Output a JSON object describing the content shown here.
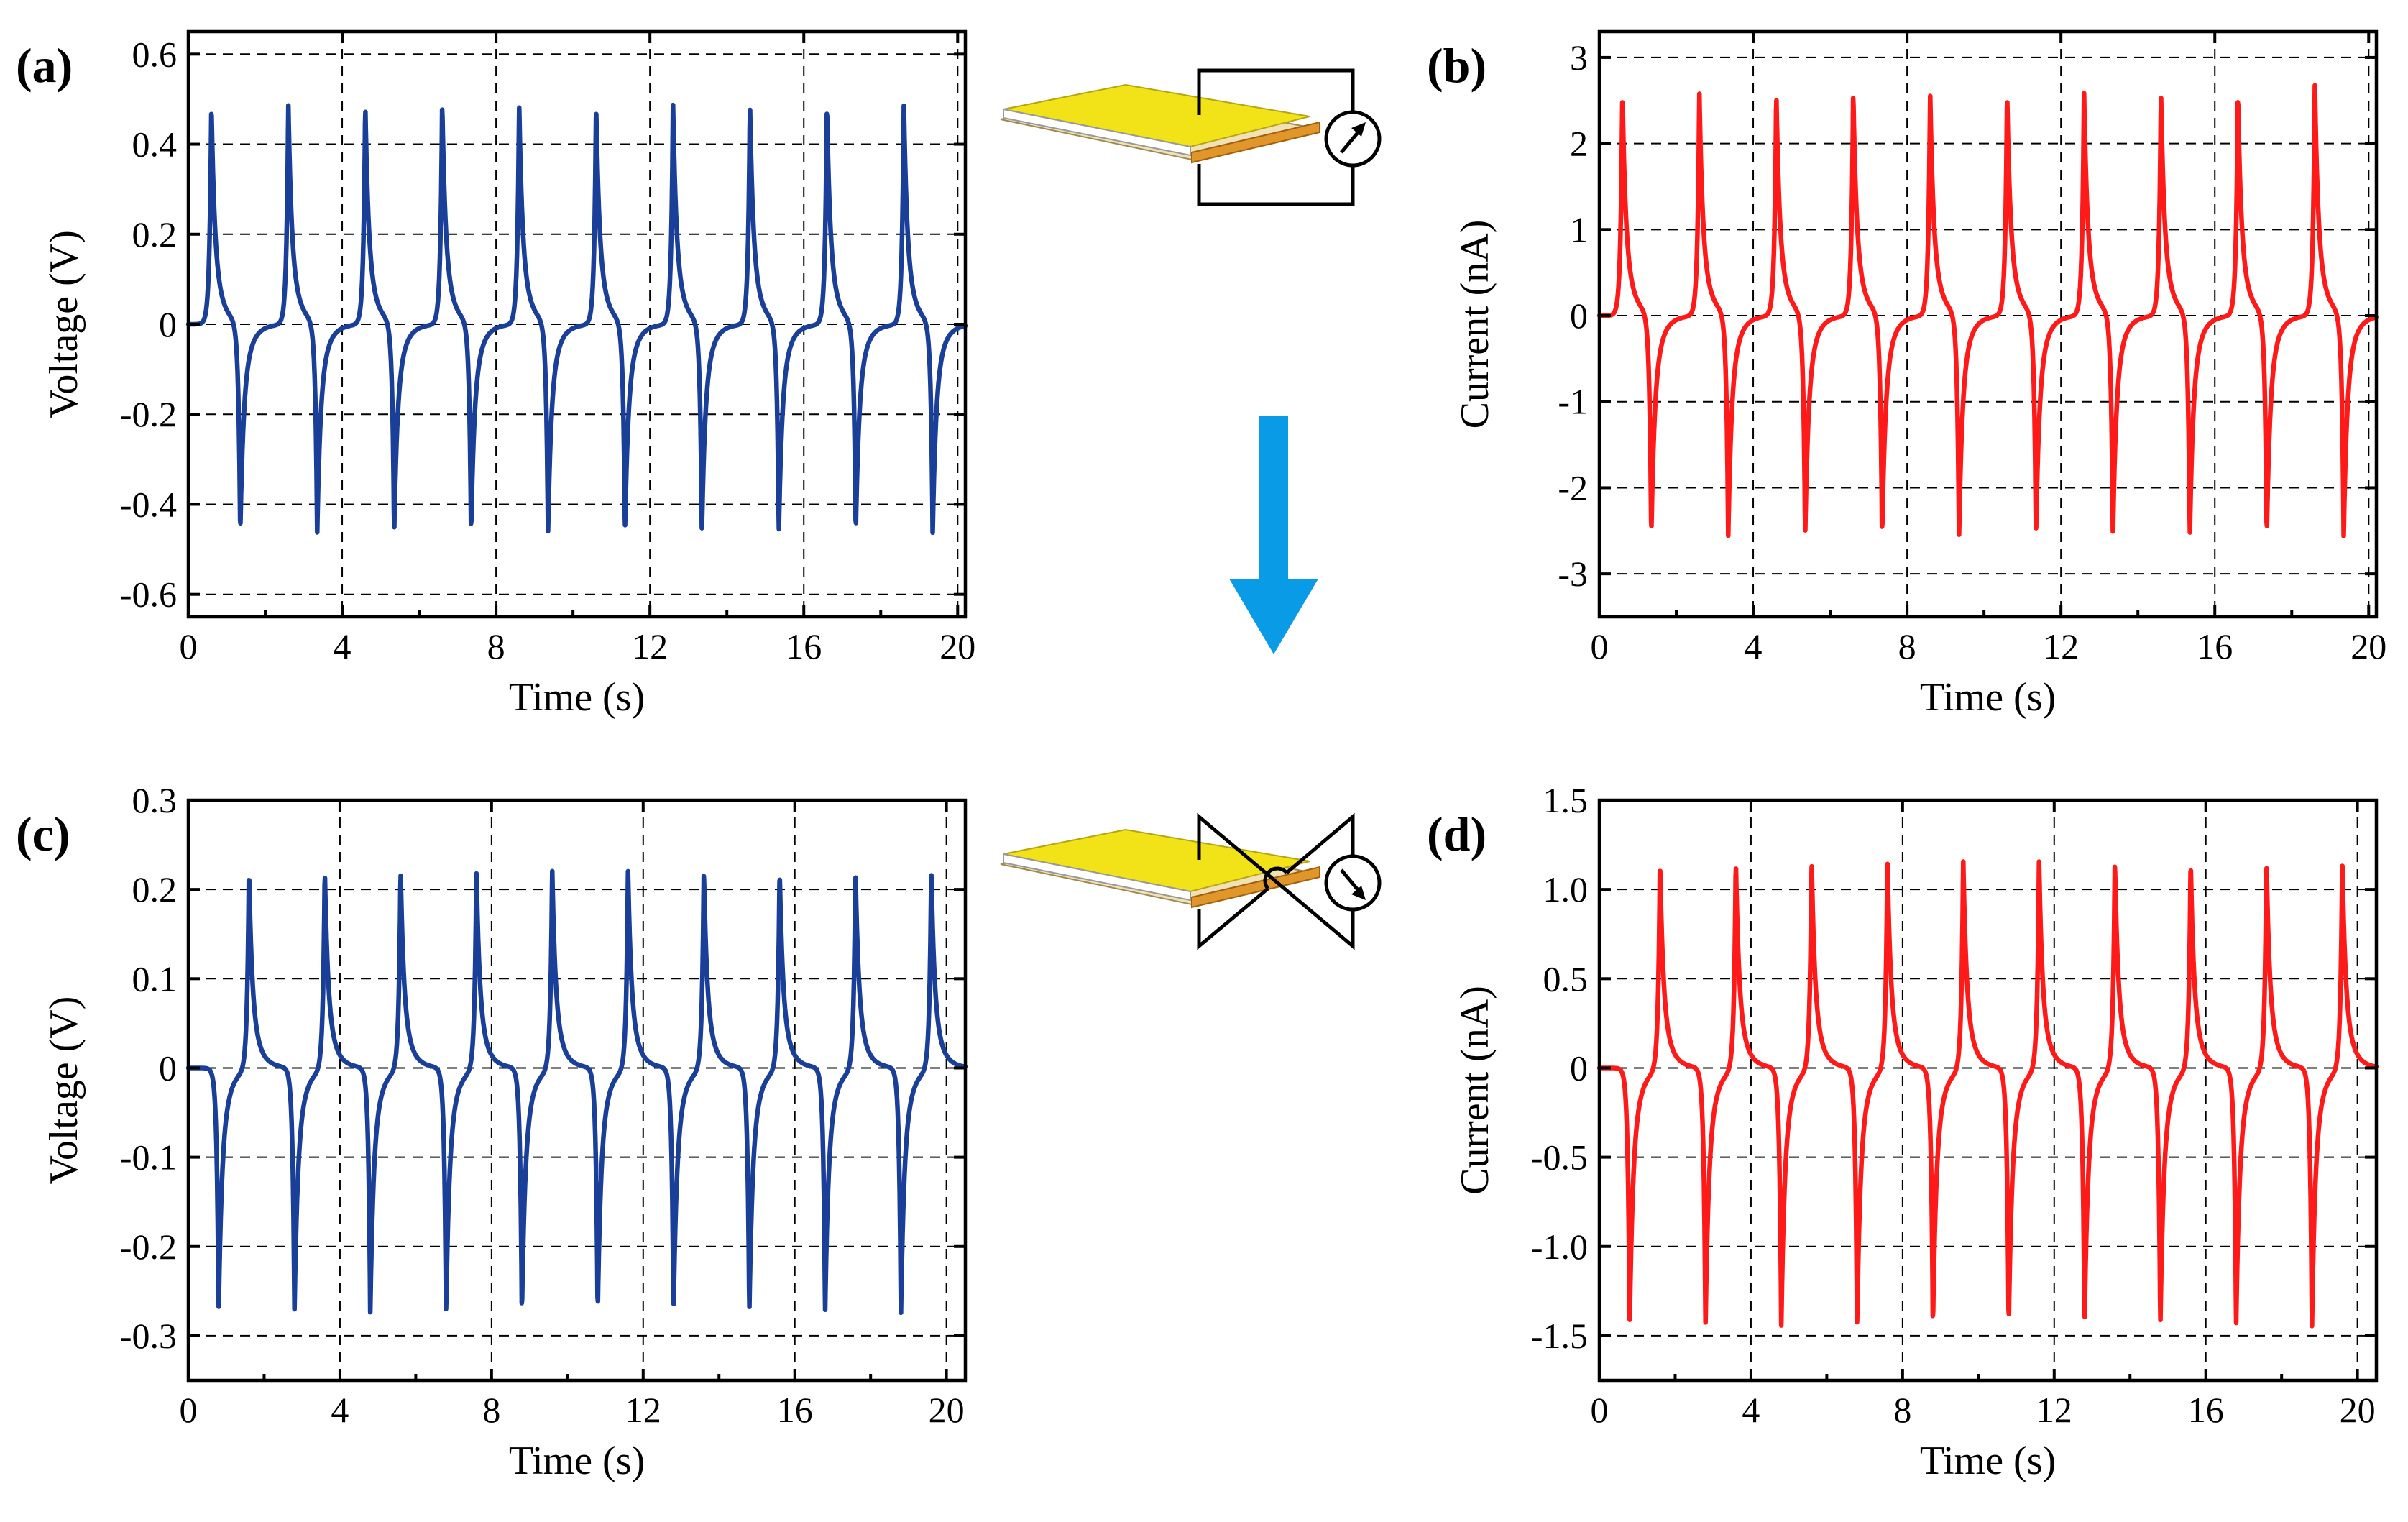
{
  "colors": {
    "voltage_trace": "#1a3f99",
    "current_trace": "#ff1a1a",
    "arrow": "#0a9be6",
    "device_top": "#f2e318",
    "device_side": "#e1962a",
    "device_base": "#f1e2b6",
    "circuit_line": "#000000"
  },
  "diagrams": {
    "top": {
      "name": "device-with-closed-circuit",
      "icons": [
        "layered-device-icon",
        "ammeter-icon",
        "circuit-loop-icon"
      ]
    },
    "bottom": {
      "name": "device-with-reversed-circuit",
      "icons": [
        "layered-device-icon",
        "ammeter-icon",
        "crossed-circuit-icon"
      ]
    },
    "arrow_icon": "down-arrow-icon"
  },
  "chart_data": [
    {
      "id": "a",
      "panel_label": "(a)",
      "type": "line",
      "title": "",
      "xlabel": "Time (s)",
      "ylabel": "Voltage (V)",
      "xlim": [
        0,
        20.2
      ],
      "ylim": [
        -0.65,
        0.65
      ],
      "xticks": [
        0,
        4,
        8,
        12,
        16,
        20
      ],
      "yticks": [
        -0.6,
        -0.4,
        -0.2,
        0,
        0.2,
        0.4,
        0.6
      ],
      "ytick_labels": [
        "-0.6",
        "-0.4",
        "-0.2",
        "0",
        "0.2",
        "0.4",
        "0.6"
      ],
      "grid": true,
      "color": "voltage_trace",
      "series": [
        {
          "positive_peak_times": [
            0.6,
            2.6,
            4.6,
            6.6,
            8.6,
            10.6,
            12.6,
            14.6,
            16.6,
            18.6
          ],
          "positive_peak_values": [
            0.49,
            0.49,
            0.49,
            0.49,
            0.49,
            0.49,
            0.49,
            0.49,
            0.49,
            0.49
          ],
          "negative_peak_times": [
            1.35,
            3.35,
            5.35,
            7.35,
            9.35,
            11.35,
            13.35,
            15.35,
            17.35,
            19.35
          ],
          "negative_peak_values": [
            -0.47,
            -0.47,
            -0.47,
            -0.47,
            -0.47,
            -0.47,
            -0.47,
            -0.47,
            -0.47,
            -0.47
          ],
          "baseline": 0
        }
      ]
    },
    {
      "id": "b",
      "panel_label": "(b)",
      "type": "line",
      "title": "",
      "xlabel": "Time (s)",
      "ylabel": "Current (nA)",
      "xlim": [
        0,
        20.2
      ],
      "ylim": [
        -3.5,
        3.3
      ],
      "xticks": [
        0,
        4,
        8,
        12,
        16,
        20
      ],
      "yticks": [
        -3,
        -2,
        -1,
        0,
        1,
        2,
        3
      ],
      "ytick_labels": [
        "-3",
        "-2",
        "-1",
        "0",
        "1",
        "2",
        "3"
      ],
      "grid": true,
      "color": "current_trace",
      "series": [
        {
          "positive_peak_times": [
            0.6,
            2.6,
            4.6,
            6.6,
            8.6,
            10.6,
            12.6,
            14.6,
            16.6,
            18.6
          ],
          "positive_peak_values": [
            2.6,
            2.6,
            2.6,
            2.6,
            2.6,
            2.6,
            2.6,
            2.6,
            2.6,
            2.7
          ],
          "negative_peak_times": [
            1.35,
            3.35,
            5.35,
            7.35,
            9.35,
            11.35,
            13.35,
            15.35,
            17.35,
            19.35
          ],
          "negative_peak_values": [
            -2.6,
            -2.6,
            -2.6,
            -2.6,
            -2.6,
            -2.6,
            -2.6,
            -2.6,
            -2.6,
            -2.6
          ],
          "baseline": 0
        }
      ]
    },
    {
      "id": "c",
      "panel_label": "(c)",
      "type": "line",
      "title": "",
      "xlabel": "Time (s)",
      "ylabel": "Voltage (V)",
      "xlim": [
        0,
        20.5
      ],
      "ylim": [
        -0.35,
        0.3
      ],
      "xticks": [
        0,
        4,
        8,
        12,
        16,
        20
      ],
      "yticks": [
        -0.3,
        -0.2,
        -0.1,
        0,
        0.1,
        0.2,
        0.3
      ],
      "ytick_labels": [
        "-0.3",
        "-0.2",
        "-0.1",
        "0",
        "0.1",
        "0.2",
        "0.3"
      ],
      "grid": true,
      "color": "voltage_trace",
      "series": [
        {
          "positive_peak_times": [
            1.6,
            3.6,
            5.6,
            7.6,
            9.6,
            11.6,
            13.6,
            15.6,
            17.6,
            19.6
          ],
          "positive_peak_values": [
            0.225,
            0.225,
            0.225,
            0.225,
            0.225,
            0.225,
            0.225,
            0.225,
            0.225,
            0.225
          ],
          "negative_peak_times": [
            0.8,
            2.8,
            4.8,
            6.8,
            8.8,
            10.8,
            12.8,
            14.8,
            16.8,
            18.8
          ],
          "negative_peak_values": [
            -0.275,
            -0.275,
            -0.275,
            -0.275,
            -0.275,
            -0.275,
            -0.275,
            -0.275,
            -0.275,
            -0.275
          ],
          "baseline": 0
        }
      ]
    },
    {
      "id": "d",
      "panel_label": "(d)",
      "type": "line",
      "title": "",
      "xlabel": "Time (s)",
      "ylabel": "Current (nA)",
      "xlim": [
        0,
        20.5
      ],
      "ylim": [
        -1.75,
        1.5
      ],
      "xticks": [
        0,
        4,
        8,
        12,
        16,
        20
      ],
      "yticks": [
        -1.5,
        -1.0,
        -0.5,
        0,
        0.5,
        1.0,
        1.5
      ],
      "ytick_labels": [
        "-1.5",
        "-1.0",
        "-0.5",
        "0",
        "0.5",
        "1.0",
        "1.5"
      ],
      "grid": true,
      "color": "current_trace",
      "series": [
        {
          "positive_peak_times": [
            1.6,
            3.6,
            5.6,
            7.6,
            9.6,
            11.6,
            13.6,
            15.6,
            17.6,
            19.6
          ],
          "positive_peak_values": [
            1.18,
            1.18,
            1.18,
            1.18,
            1.18,
            1.18,
            1.18,
            1.18,
            1.18,
            1.18
          ],
          "negative_peak_times": [
            0.8,
            2.8,
            4.8,
            6.8,
            8.8,
            10.8,
            12.8,
            14.8,
            16.8,
            18.8
          ],
          "negative_peak_values": [
            -1.45,
            -1.45,
            -1.45,
            -1.45,
            -1.45,
            -1.45,
            -1.45,
            -1.45,
            -1.45,
            -1.45
          ],
          "baseline": 0
        }
      ]
    }
  ]
}
